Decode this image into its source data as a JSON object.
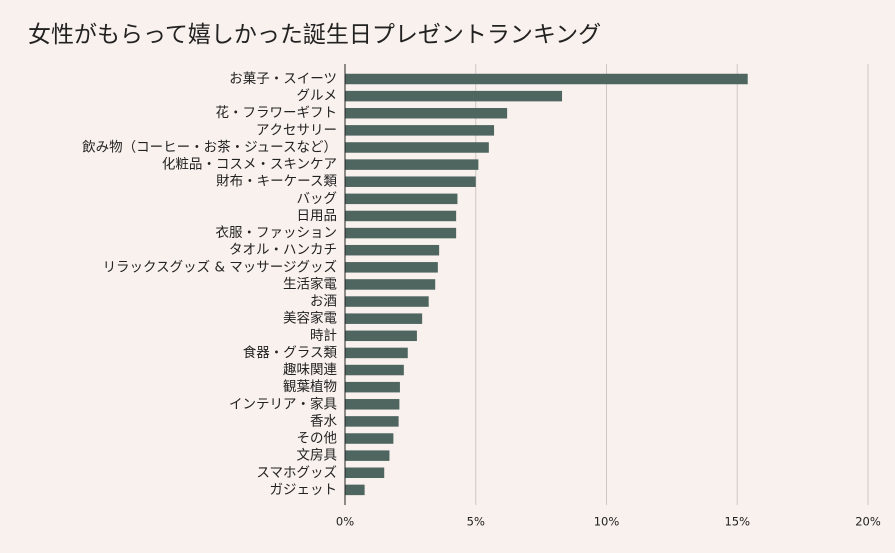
{
  "chart_data": {
    "type": "bar",
    "orientation": "horizontal",
    "title": "女性がもらって嬉しかった誕生日プレゼントランキング",
    "xlabel": "",
    "ylabel": "",
    "categories": [
      "お菓子・スイーツ",
      "グルメ",
      "花・フラワーギフト",
      "アクセサリー",
      "飲み物（コーヒー・お茶・ジュースなど）",
      "化粧品・コスメ・スキンケア",
      "財布・キーケース類",
      "バッグ",
      "日用品",
      "衣服・ファッション",
      "タオル・ハンカチ",
      "リラックスグッズ & マッサージグッズ",
      "生活家電",
      "お酒",
      "美容家電",
      "時計",
      "食器・グラス類",
      "趣味関連",
      "観葉植物",
      "インテリア・家具",
      "香水",
      "その他",
      "文房具",
      "スマホグッズ",
      "ガジェット"
    ],
    "values": [
      15.4,
      8.3,
      6.2,
      5.7,
      5.5,
      5.1,
      5.0,
      4.3,
      4.25,
      4.25,
      3.6,
      3.55,
      3.45,
      3.2,
      2.95,
      2.75,
      2.4,
      2.25,
      2.1,
      2.08,
      2.05,
      1.85,
      1.7,
      1.5,
      0.75
    ],
    "xlim": [
      0,
      20
    ],
    "xticks": [
      0,
      5,
      10,
      15,
      20
    ],
    "xtick_labels": [
      "0%",
      "5%",
      "10%",
      "15%",
      "20%"
    ],
    "grid": "vertical",
    "legend": "none",
    "bar_color": "#4e6560",
    "grid_color": "#cdc8c6",
    "background": "#f9f1ed"
  }
}
